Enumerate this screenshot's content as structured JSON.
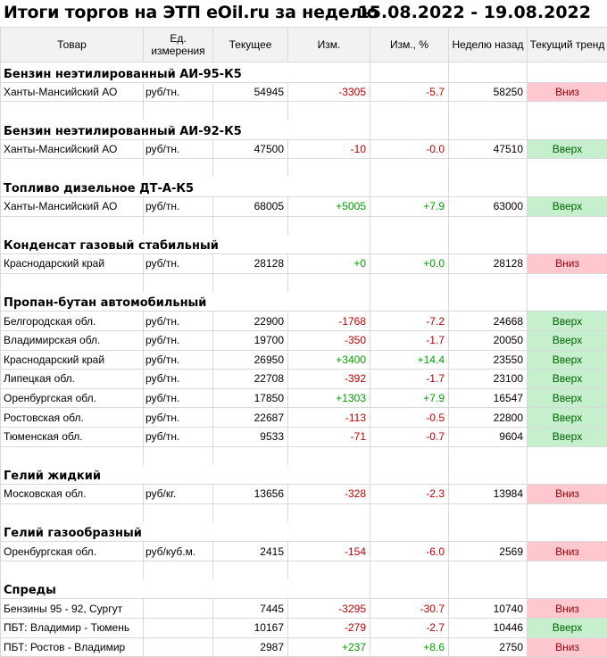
{
  "title": "Итоги торгов на ЭТП eOil.ru за неделю",
  "period": "15.08.2022 - 19.08.2022",
  "columns": [
    "Товар",
    "Ед. измерения",
    "Текущее",
    "Изм.",
    "Изм., %",
    "Неделю назад",
    "Текущий тренд"
  ],
  "sections": [
    {
      "name": "Бензин неэтилированный АИ-95-К5",
      "rows": [
        {
          "region": "Ханты-Мансийский АО",
          "unit": "руб/тн.",
          "current": "54945",
          "change": "-3305",
          "change_pct": "-5.7",
          "prev": "58250",
          "trend": "Вниз",
          "dir": "down"
        }
      ]
    },
    {
      "name": "Бензин неэтилированный АИ-92-К5",
      "rows": [
        {
          "region": "Ханты-Мансийский АО",
          "unit": "руб/тн.",
          "current": "47500",
          "change": "-10",
          "change_pct": "-0.0",
          "prev": "47510",
          "trend": "Вверх",
          "dir": "up"
        }
      ]
    },
    {
      "name": "Топливо дизельное ДТ-А-К5",
      "rows": [
        {
          "region": "Ханты-Мансийский АО",
          "unit": "руб/тн.",
          "current": "68005",
          "change": "+5005",
          "change_pct": "+7.9",
          "prev": "63000",
          "trend": "Вверх",
          "dir": "up"
        }
      ]
    },
    {
      "name": "Конденсат газовый стабильный",
      "rows": [
        {
          "region": "Краснодарский край",
          "unit": "руб/тн.",
          "current": "28128",
          "change": "+0",
          "change_pct": "+0.0",
          "prev": "28128",
          "trend": "Вниз",
          "dir": "down"
        }
      ]
    },
    {
      "name": "Пропан-бутан автомобильный",
      "rows": [
        {
          "region": "Белгородская обл.",
          "unit": "руб/тн.",
          "current": "22900",
          "change": "-1768",
          "change_pct": "-7.2",
          "prev": "24668",
          "trend": "Вверх",
          "dir": "up"
        },
        {
          "region": "Владимирская обл.",
          "unit": "руб/тн.",
          "current": "19700",
          "change": "-350",
          "change_pct": "-1.7",
          "prev": "20050",
          "trend": "Вверх",
          "dir": "up"
        },
        {
          "region": "Краснодарский край",
          "unit": "руб/тн.",
          "current": "26950",
          "change": "+3400",
          "change_pct": "+14.4",
          "prev": "23550",
          "trend": "Вверх",
          "dir": "up"
        },
        {
          "region": "Липецкая обл.",
          "unit": "руб/тн.",
          "current": "22708",
          "change": "-392",
          "change_pct": "-1.7",
          "prev": "23100",
          "trend": "Вверх",
          "dir": "up"
        },
        {
          "region": "Оренбургская обл.",
          "unit": "руб/тн.",
          "current": "17850",
          "change": "+1303",
          "change_pct": "+7.9",
          "prev": "16547",
          "trend": "Вверх",
          "dir": "up"
        },
        {
          "region": "Ростовская обл.",
          "unit": "руб/тн.",
          "current": "22687",
          "change": "-113",
          "change_pct": "-0.5",
          "prev": "22800",
          "trend": "Вверх",
          "dir": "up"
        },
        {
          "region": "Тюменская обл.",
          "unit": "руб/тн.",
          "current": "9533",
          "change": "-71",
          "change_pct": "-0.7",
          "prev": "9604",
          "trend": "Вверх",
          "dir": "up"
        }
      ]
    },
    {
      "name": "Гелий жидкий",
      "rows": [
        {
          "region": "Московская обл.",
          "unit": "руб/кг.",
          "current": "13656",
          "change": "-328",
          "change_pct": "-2.3",
          "prev": "13984",
          "trend": "Вниз",
          "dir": "down"
        }
      ]
    },
    {
      "name": "Гелий газообразный",
      "rows": [
        {
          "region": "Оренбургская обл.",
          "unit": "руб/куб.м.",
          "current": "2415",
          "change": "-154",
          "change_pct": "-6.0",
          "prev": "2569",
          "trend": "Вниз",
          "dir": "down"
        }
      ]
    },
    {
      "name": "Спреды",
      "rows": [
        {
          "region": "Бензины 95 - 92, Сургут",
          "unit": "",
          "current": "7445",
          "change": "-3295",
          "change_pct": "-30.7",
          "prev": "10740",
          "trend": "Вниз",
          "dir": "down"
        },
        {
          "region": "ПБТ: Владимир - Тюмень",
          "unit": "",
          "current": "10167",
          "change": "-279",
          "change_pct": "-2.7",
          "prev": "10446",
          "trend": "Вверх",
          "dir": "up"
        },
        {
          "region": "ПБТ: Ростов - Владимир",
          "unit": "",
          "current": "2987",
          "change": "+237",
          "change_pct": "+8.6",
          "prev": "2750",
          "trend": "Вниз",
          "dir": "down"
        }
      ]
    }
  ]
}
